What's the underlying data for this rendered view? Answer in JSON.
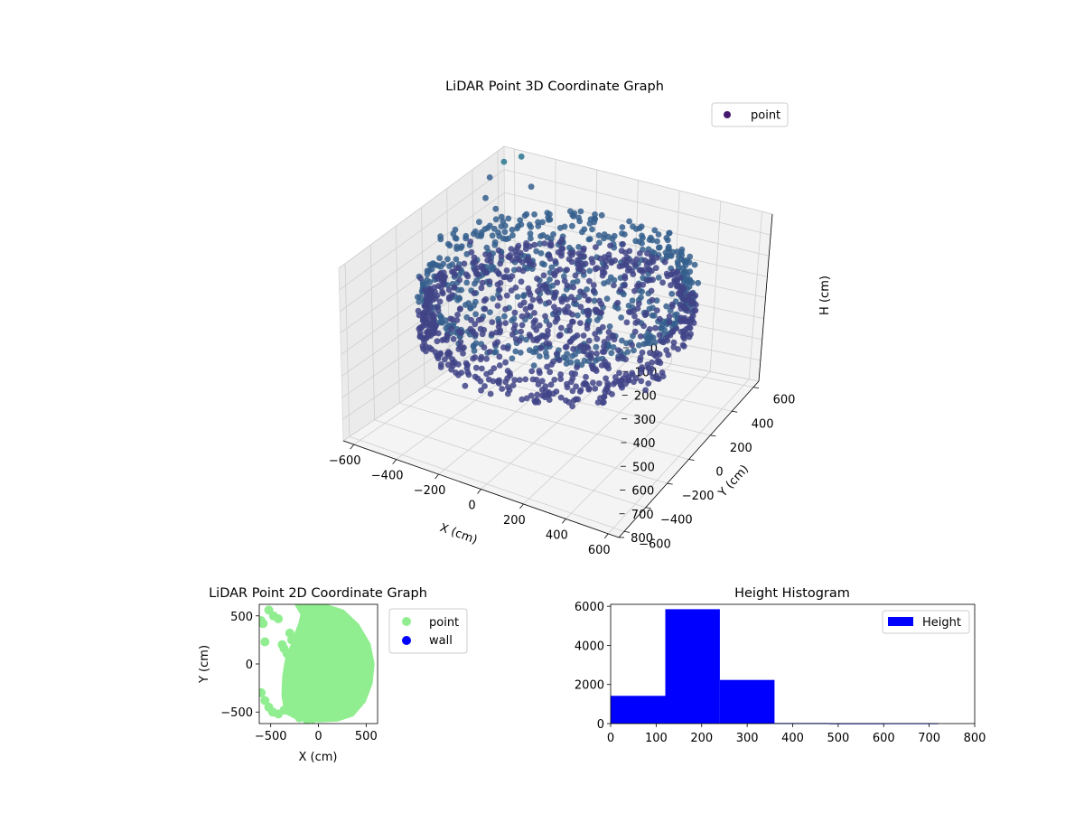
{
  "chart_data": [
    {
      "type": "scatter3d",
      "title": "LiDAR Point 3D Coordinate Graph",
      "xlabel": "X (cm)",
      "ylabel": "Y (cm)",
      "zlabel": "H (cm)",
      "xlim": [
        -650,
        650
      ],
      "ylim": [
        -650,
        650
      ],
      "zlim": [
        0,
        800
      ],
      "z_inverted": true,
      "x_ticks": [
        "−600",
        "−400",
        "−200",
        "0",
        "200",
        "400",
        "600"
      ],
      "y_ticks": [
        "−600",
        "−400",
        "−200",
        "0",
        "200",
        "400",
        "600"
      ],
      "z_ticks": [
        "0",
        "100",
        "200",
        "300",
        "400",
        "500",
        "600",
        "700",
        "800"
      ],
      "grid": true,
      "colormap": "viridis",
      "legend": {
        "placement": "top-right",
        "entries": [
          "point"
        ]
      },
      "series": [
        {
          "name": "point",
          "color": "#45196e",
          "description_points": [
            {
              "x": 560,
              "y": 0,
              "h": 250
            },
            {
              "x": 500,
              "y": 250,
              "h": 230
            },
            {
              "x": 380,
              "y": 420,
              "h": 210
            },
            {
              "x": 200,
              "y": 540,
              "h": 200
            },
            {
              "x": 0,
              "y": 580,
              "h": 200
            },
            {
              "x": -200,
              "y": 540,
              "h": 210
            },
            {
              "x": 400,
              "y": -380,
              "h": 260
            },
            {
              "x": 200,
              "y": -520,
              "h": 280
            },
            {
              "x": 0,
              "y": -560,
              "h": 300
            },
            {
              "x": -200,
              "y": -500,
              "h": 300
            },
            {
              "x": -380,
              "y": -420,
              "h": 290
            },
            {
              "x": -560,
              "y": -300,
              "h": 260
            },
            {
              "x": -600,
              "y": 0,
              "h": 220
            },
            {
              "x": -620,
              "y": 300,
              "h": 180
            },
            {
              "x": -600,
              "y": 500,
              "h": 60
            },
            {
              "x": -400,
              "y": 560,
              "h": 100
            }
          ]
        }
      ]
    },
    {
      "type": "scatter",
      "title": "LiDAR Point 2D Coordinate Graph",
      "xlabel": "X (cm)",
      "ylabel": "Y (cm)",
      "xlim": [
        -620,
        620
      ],
      "ylim": [
        -620,
        620
      ],
      "x_ticks": [
        "−500",
        "0",
        "500"
      ],
      "y_ticks": [
        "−500",
        "0",
        "500"
      ],
      "legend": {
        "placement": "outside-right",
        "entries": [
          "point",
          "wall"
        ]
      },
      "series": [
        {
          "name": "point",
          "color": "#90ee90",
          "points": [
            [
              -600,
              450
            ],
            [
              -580,
              420
            ],
            [
              -560,
              230
            ],
            [
              -520,
              560
            ],
            [
              -470,
              500
            ],
            [
              -420,
              470
            ],
            [
              -380,
              200
            ],
            [
              -360,
              160
            ],
            [
              -330,
              110
            ],
            [
              -600,
              -300
            ],
            [
              -560,
              -380
            ],
            [
              -520,
              -450
            ],
            [
              -480,
              -500
            ],
            [
              -420,
              -520
            ],
            [
              -360,
              -480
            ],
            [
              -300,
              -450
            ],
            [
              -250,
              -520
            ],
            [
              -200,
              -560
            ],
            [
              -120,
              -580
            ],
            [
              -60,
              -570
            ],
            [
              -280,
              250
            ],
            [
              -300,
              320
            ],
            [
              -160,
              430
            ],
            [
              -140,
              380
            ]
          ],
          "fill_region": [
            [
              -220,
              620
            ],
            [
              -120,
              620
            ],
            [
              60,
              600
            ],
            [
              250,
              540
            ],
            [
              400,
              400
            ],
            [
              520,
              200
            ],
            [
              560,
              0
            ],
            [
              540,
              -200
            ],
            [
              470,
              -380
            ],
            [
              350,
              -520
            ],
            [
              200,
              -570
            ],
            [
              0,
              -580
            ],
            [
              -200,
              -560
            ],
            [
              -330,
              -500
            ],
            [
              -360,
              -320
            ],
            [
              -350,
              -120
            ],
            [
              -320,
              60
            ],
            [
              -260,
              200
            ],
            [
              -230,
              300
            ],
            [
              -180,
              420
            ],
            [
              -160,
              520
            ]
          ]
        },
        {
          "name": "wall",
          "color": "#0000ff",
          "points": []
        }
      ]
    },
    {
      "type": "bar",
      "title": "Height Histogram",
      "xlabel": "",
      "ylabel": "",
      "xlim": [
        0,
        800
      ],
      "ylim": [
        0,
        6100
      ],
      "x_ticks": [
        "0",
        "100",
        "200",
        "300",
        "400",
        "500",
        "600",
        "700",
        "800"
      ],
      "y_ticks": [
        "0",
        "2000",
        "4000",
        "6000"
      ],
      "legend": {
        "placement": "top-right",
        "entries": [
          "Height"
        ]
      },
      "series": [
        {
          "name": "Height",
          "color": "#0000ff",
          "bins": [
            0,
            120,
            240,
            360,
            480,
            600,
            720
          ],
          "values": [
            1420,
            5850,
            2230,
            28,
            15,
            18
          ]
        }
      ]
    }
  ]
}
